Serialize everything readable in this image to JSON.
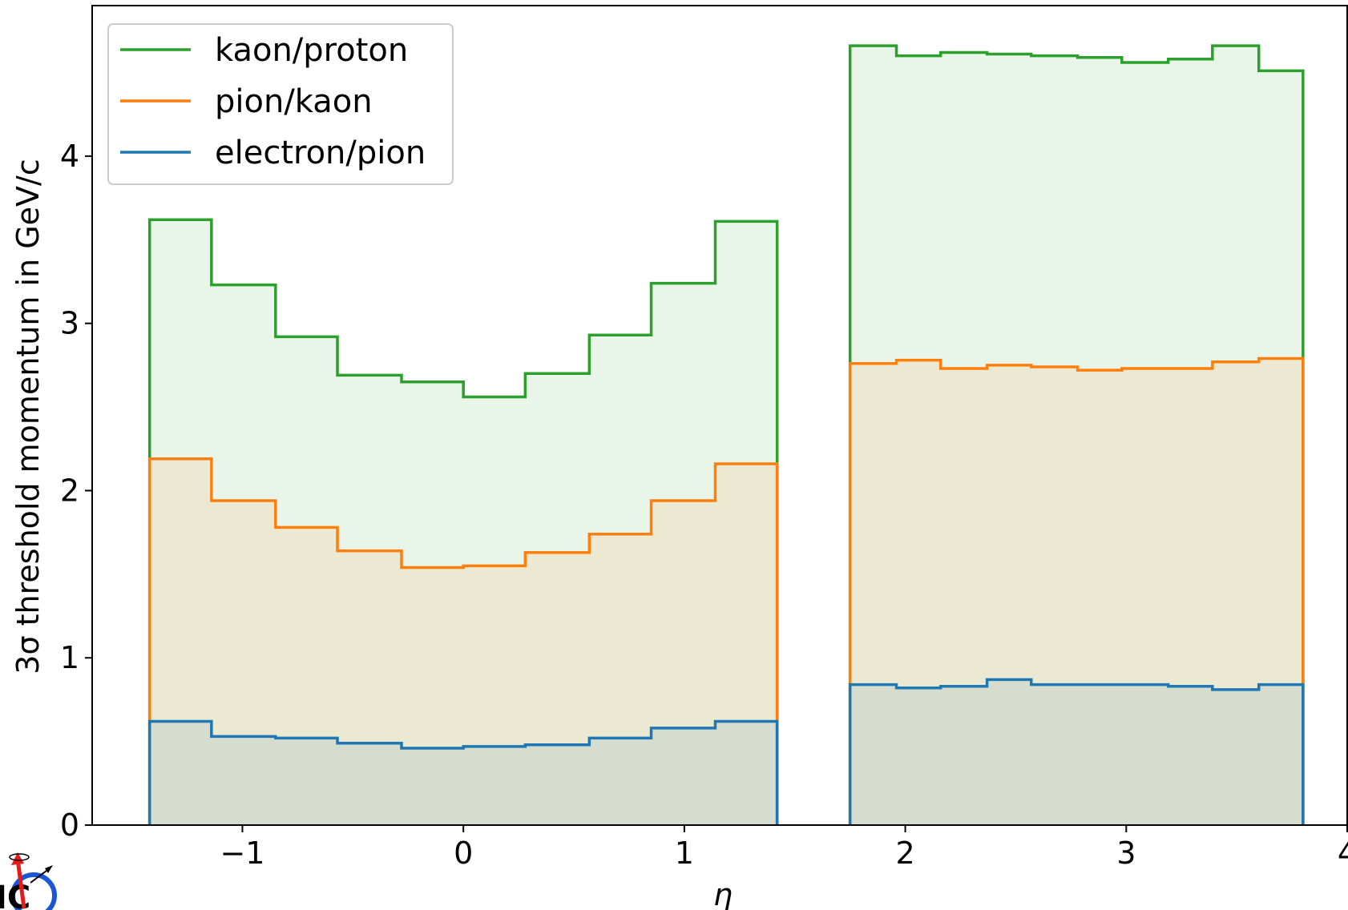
{
  "chart_data": {
    "type": "histogram-step",
    "xlabel": "η",
    "ylabel": "3σ threshold momentum in GeV/c",
    "xlim": [
      -1.68,
      4.0
    ],
    "ylim": [
      0,
      4.9
    ],
    "xticks": [
      -1,
      0,
      1,
      2,
      3,
      4
    ],
    "xtick_labels": [
      "−1",
      "0",
      "1",
      "2",
      "3",
      "4"
    ],
    "yticks": [
      0,
      1,
      2,
      3,
      4
    ],
    "ytick_labels": [
      "0",
      "1",
      "2",
      "3",
      "4"
    ],
    "grid": false,
    "legend_position": "upper-left",
    "groups": [
      {
        "bin_edges": [
          -1.42,
          -1.14,
          -0.85,
          -0.57,
          -0.28,
          0.0,
          0.28,
          0.57,
          0.85,
          1.14,
          1.42
        ],
        "series": [
          {
            "name": "kaon/proton",
            "color": "#2ca02c",
            "values": [
              3.62,
              3.23,
              2.92,
              2.69,
              2.65,
              2.56,
              2.7,
              2.93,
              3.24,
              3.61
            ]
          },
          {
            "name": "pion/kaon",
            "color": "#ff7f0e",
            "values": [
              2.19,
              1.94,
              1.78,
              1.64,
              1.54,
              1.55,
              1.63,
              1.74,
              1.94,
              2.16
            ]
          },
          {
            "name": "electron/pion",
            "color": "#1f77b4",
            "values": [
              0.62,
              0.53,
              0.52,
              0.49,
              0.46,
              0.47,
              0.48,
              0.52,
              0.58,
              0.62
            ]
          }
        ]
      },
      {
        "bin_edges": [
          1.75,
          1.96,
          2.16,
          2.37,
          2.57,
          2.78,
          2.98,
          3.19,
          3.39,
          3.6,
          3.8
        ],
        "series": [
          {
            "name": "kaon/proton",
            "color": "#2ca02c",
            "values": [
              4.66,
              4.6,
              4.62,
              4.61,
              4.6,
              4.59,
              4.56,
              4.58,
              4.66,
              4.51
            ]
          },
          {
            "name": "pion/kaon",
            "color": "#ff7f0e",
            "values": [
              2.76,
              2.78,
              2.73,
              2.75,
              2.74,
              2.72,
              2.73,
              2.73,
              2.77,
              2.79
            ]
          },
          {
            "name": "electron/pion",
            "color": "#1f77b4",
            "values": [
              0.84,
              0.82,
              0.83,
              0.87,
              0.84,
              0.84,
              0.84,
              0.83,
              0.81,
              0.84
            ]
          }
        ]
      }
    ],
    "legend": [
      {
        "name": "kaon/proton",
        "color": "#2ca02c"
      },
      {
        "name": "pion/kaon",
        "color": "#ff7f0e"
      },
      {
        "name": "electron/pion",
        "color": "#1f77b4"
      }
    ]
  },
  "logo": {
    "name": "EIC logo"
  }
}
